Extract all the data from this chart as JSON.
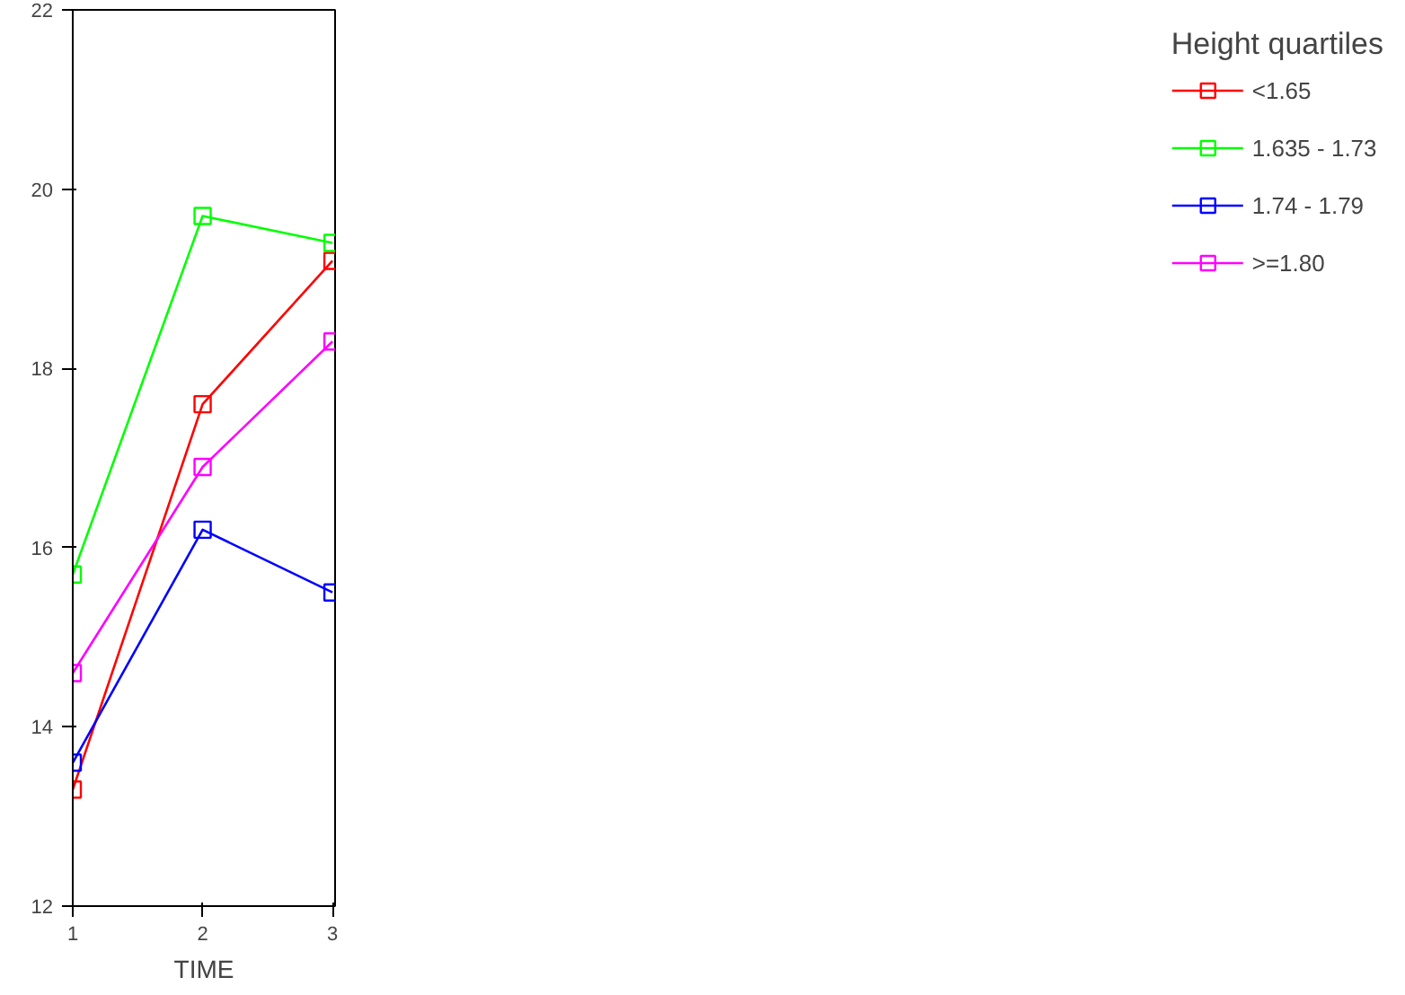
{
  "chart_data": {
    "type": "line",
    "xlabel": "TIME",
    "legend_title": "Height quartiles",
    "x": [
      1,
      2,
      3
    ],
    "series": [
      {
        "name": "<1.65",
        "color": "#ff0000",
        "values": [
          13.3,
          17.6,
          19.2
        ]
      },
      {
        "name": "1.635 - 1.73",
        "color": "#00ff00",
        "values": [
          15.7,
          19.7,
          19.4
        ]
      },
      {
        "name": "1.74 - 1.79",
        "color": "#0000ff",
        "values": [
          13.6,
          16.2,
          15.5
        ]
      },
      {
        "name": ">=1.80",
        "color": "#ff00ff",
        "values": [
          14.6,
          16.9,
          18.3
        ]
      }
    ],
    "xlim": [
      1,
      3.02
    ],
    "xticks": [
      1,
      2,
      3
    ],
    "ylim": [
      12,
      22
    ],
    "yticks": [
      12,
      14,
      16,
      18,
      20,
      22
    ],
    "grid": false,
    "legend": "right",
    "marker": "square",
    "line_style": "solid"
  }
}
